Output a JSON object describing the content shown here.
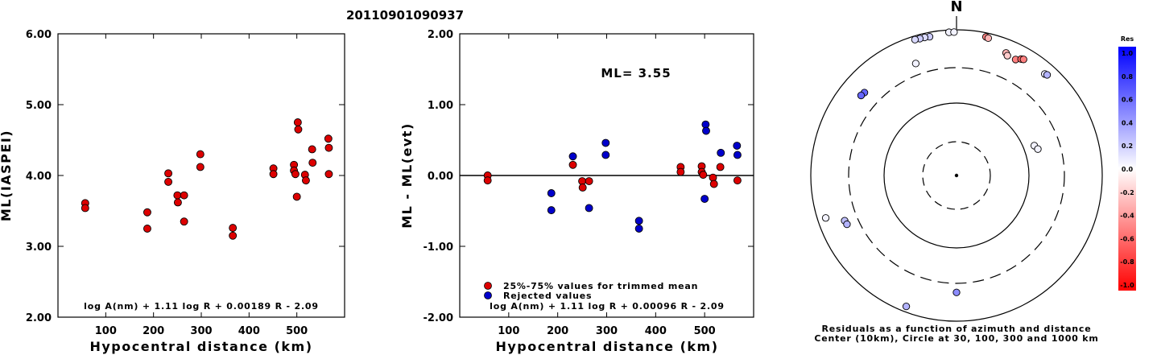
{
  "title": "20110901090937",
  "colors": {
    "accepted": "#dd0000",
    "rejected": "#0000cc"
  },
  "chart_data": [
    {
      "type": "scatter",
      "xlabel": "Hypocentral distance (km)",
      "ylabel": "ML(IASPEI)",
      "xlim": [
        0,
        600
      ],
      "ylim": [
        2.0,
        6.0
      ],
      "x_ticks": [
        "100",
        "200",
        "300",
        "400",
        "500"
      ],
      "y_ticks": [
        "2.00",
        "3.00",
        "4.00",
        "5.00",
        "6.00"
      ],
      "formula": "log A(nm) + 1.11 log R + 0.00189 R - 2.09",
      "series": [
        {
          "points": [
            [
              57,
              3.61
            ],
            [
              57,
              3.54
            ],
            [
              187,
              3.48
            ],
            [
              187,
              3.25
            ],
            [
              231,
              4.03
            ],
            [
              231,
              3.91
            ],
            [
              250,
              3.72
            ],
            [
              251,
              3.62
            ],
            [
              264,
              3.72
            ],
            [
              264,
              3.35
            ],
            [
              298,
              4.3
            ],
            [
              298,
              4.12
            ],
            [
              366,
              3.26
            ],
            [
              366,
              3.15
            ],
            [
              451,
              4.1
            ],
            [
              451,
              4.02
            ],
            [
              494,
              4.15
            ],
            [
              494,
              4.07
            ],
            [
              497,
              4.02
            ],
            [
              500,
              3.7
            ],
            [
              502,
              4.75
            ],
            [
              503,
              4.65
            ],
            [
              517,
              4.01
            ],
            [
              519,
              3.93
            ],
            [
              532,
              4.37
            ],
            [
              533,
              4.18
            ],
            [
              566,
              4.52
            ],
            [
              567,
              4.39
            ],
            [
              567,
              4.02
            ]
          ]
        }
      ]
    },
    {
      "type": "scatter",
      "xlabel": "Hypocentral distance (km)",
      "ylabel": "ML - ML(evt)",
      "xlim": [
        0,
        600
      ],
      "ylim": [
        -2.0,
        2.0
      ],
      "x_ticks": [
        "100",
        "200",
        "300",
        "400",
        "500"
      ],
      "y_ticks": [
        "-2.00",
        "-1.00",
        "0.00",
        "1.00",
        "2.00"
      ],
      "annotation": "ML= 3.55",
      "formula": "log A(nm) + 1.11 log R + 0.00096 R - 2.09",
      "series": [
        {
          "name": "25%-75% values for trimmed mean",
          "points": [
            [
              57,
              0.0
            ],
            [
              57,
              -0.07
            ],
            [
              231,
              0.15
            ],
            [
              250,
              -0.08
            ],
            [
              251,
              -0.17
            ],
            [
              264,
              -0.08
            ],
            [
              451,
              0.12
            ],
            [
              451,
              0.05
            ],
            [
              494,
              0.13
            ],
            [
              494,
              0.05
            ],
            [
              497,
              0.01
            ],
            [
              517,
              -0.03
            ],
            [
              519,
              -0.12
            ],
            [
              532,
              0.12
            ],
            [
              567,
              -0.07
            ]
          ]
        },
        {
          "name": "Rejected values",
          "points": [
            [
              187,
              -0.25
            ],
            [
              187,
              -0.49
            ],
            [
              231,
              0.27
            ],
            [
              264,
              -0.46
            ],
            [
              298,
              0.46
            ],
            [
              298,
              0.29
            ],
            [
              366,
              -0.64
            ],
            [
              366,
              -0.75
            ],
            [
              500,
              -0.33
            ],
            [
              502,
              0.72
            ],
            [
              503,
              0.63
            ],
            [
              533,
              0.32
            ],
            [
              566,
              0.42
            ],
            [
              567,
              0.29
            ]
          ]
        }
      ]
    },
    {
      "type": "polar-scatter",
      "north_label": "N",
      "caption_line1": "Residuals as a function of azimuth and distance",
      "caption_line2": "Center (10km), Circle at 30, 100, 300 and 1000 km",
      "colorbar": {
        "title": "Res",
        "ticks": [
          "1.0",
          "0.8",
          "0.6",
          "0.4",
          "0.2",
          "0.0",
          "-0.2",
          "-0.4",
          "-0.6",
          "-0.8",
          "-1.0"
        ],
        "range": [
          -1.0,
          1.0
        ]
      },
      "stations": [
        {
          "azimuth_deg": 312,
          "distance_km": 500,
          "residual": 0.6
        },
        {
          "azimuth_deg": 310,
          "distance_km": 510,
          "residual": 0.6
        },
        {
          "azimuth_deg": 340,
          "distance_km": 430,
          "residual": 0.05
        },
        {
          "azimuth_deg": 349,
          "distance_km": 870,
          "residual": 0.2
        },
        {
          "azimuth_deg": 347,
          "distance_km": 880,
          "residual": 0.15
        },
        {
          "azimuth_deg": 345,
          "distance_km": 880,
          "residual": 0.2
        },
        {
          "azimuth_deg": 343,
          "distance_km": 890,
          "residual": 0.15
        },
        {
          "azimuth_deg": 357,
          "distance_km": 930,
          "residual": 0.05
        },
        {
          "azimuth_deg": 359,
          "distance_km": 930,
          "residual": 0.05
        },
        {
          "azimuth_deg": 12,
          "distance_km": 880,
          "residual": -0.5
        },
        {
          "azimuth_deg": 13,
          "distance_km": 860,
          "residual": -0.3
        },
        {
          "azimuth_deg": 22,
          "distance_km": 650,
          "residual": -0.3
        },
        {
          "azimuth_deg": 23,
          "distance_km": 610,
          "residual": -0.2
        },
        {
          "azimuth_deg": 27,
          "distance_km": 610,
          "residual": -0.5
        },
        {
          "azimuth_deg": 29,
          "distance_km": 670,
          "residual": -0.6
        },
        {
          "azimuth_deg": 30,
          "distance_km": 690,
          "residual": -0.5
        },
        {
          "azimuth_deg": 41,
          "distance_km": 700,
          "residual": 0.1
        },
        {
          "azimuth_deg": 42,
          "distance_km": 720,
          "residual": 0.3
        },
        {
          "azimuth_deg": 69,
          "distance_km": 140,
          "residual": 0.05
        },
        {
          "azimuth_deg": 72,
          "distance_km": 150,
          "residual": 0.05
        },
        {
          "azimuth_deg": 248,
          "distance_km": 450,
          "residual": 0.25
        },
        {
          "azimuth_deg": 246,
          "distance_km": 440,
          "residual": 0.3
        },
        {
          "azimuth_deg": 252,
          "distance_km": 770,
          "residual": 0.05
        },
        {
          "azimuth_deg": 180,
          "distance_km": 400,
          "residual": 0.45
        },
        {
          "azimuth_deg": 201,
          "distance_km": 840,
          "residual": 0.3
        }
      ]
    }
  ]
}
